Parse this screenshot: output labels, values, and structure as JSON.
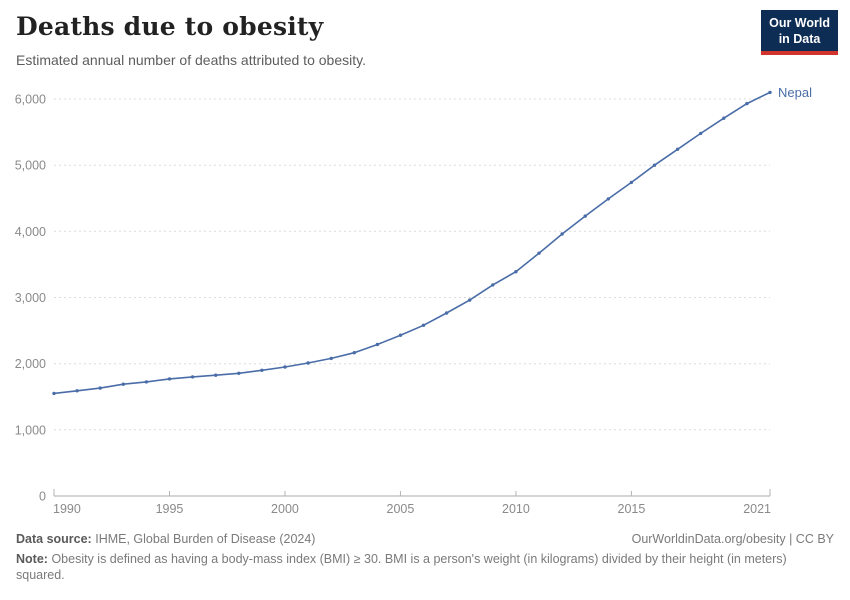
{
  "header": {
    "title": "Deaths due to obesity",
    "subtitle": "Estimated annual number of deaths attributed to obesity.",
    "logo_line1": "Our World",
    "logo_line2": "in Data"
  },
  "chart_data": {
    "type": "line",
    "title": "Deaths due to obesity",
    "xlabel": "",
    "ylabel": "",
    "xlim": [
      1990,
      2021
    ],
    "ylim": [
      0,
      6000
    ],
    "grid": "horizontal-dashed",
    "legend_position": "end-of-line-label",
    "x_ticks": [
      1990,
      1995,
      2000,
      2005,
      2010,
      2015,
      2021
    ],
    "y_ticks": [
      0,
      1000,
      2000,
      3000,
      4000,
      5000,
      6000
    ],
    "y_tick_labels": [
      "0",
      "1,000",
      "2,000",
      "3,000",
      "4,000",
      "5,000",
      "6,000"
    ],
    "series": [
      {
        "name": "Nepal",
        "color": "#4a6da8",
        "x": [
          1990,
          1991,
          1992,
          1993,
          1994,
          1995,
          1996,
          1997,
          1998,
          1999,
          2000,
          2001,
          2002,
          2003,
          2004,
          2005,
          2006,
          2007,
          2008,
          2009,
          2010,
          2011,
          2012,
          2013,
          2014,
          2015,
          2016,
          2017,
          2018,
          2019,
          2020,
          2021
        ],
        "values": [
          1550,
          1590,
          1630,
          1690,
          1725,
          1770,
          1800,
          1825,
          1855,
          1900,
          1950,
          2010,
          2080,
          2165,
          2290,
          2430,
          2580,
          2765,
          2960,
          3190,
          3390,
          3670,
          3960,
          4230,
          4490,
          4740,
          5000,
          5240,
          5480,
          5710,
          5930,
          6100
        ]
      }
    ]
  },
  "footer": {
    "datasource_label": "Data source:",
    "datasource_text": "IHME, Global Burden of Disease (2024)",
    "rights": "OurWorldinData.org/obesity | CC BY",
    "note_label": "Note:",
    "note_text": "Obesity is defined as having a body-mass index (BMI) ≥ 30. BMI is a person's weight (in kilograms) divided by their height (in meters) squared."
  },
  "colors": {
    "line": "#4a6da8",
    "logo_bg": "#0d2d54",
    "logo_accent": "#d0342c",
    "gridline": "#dcdcdc",
    "axis": "#a8a8a8",
    "tick_label": "#8a8a8a"
  }
}
